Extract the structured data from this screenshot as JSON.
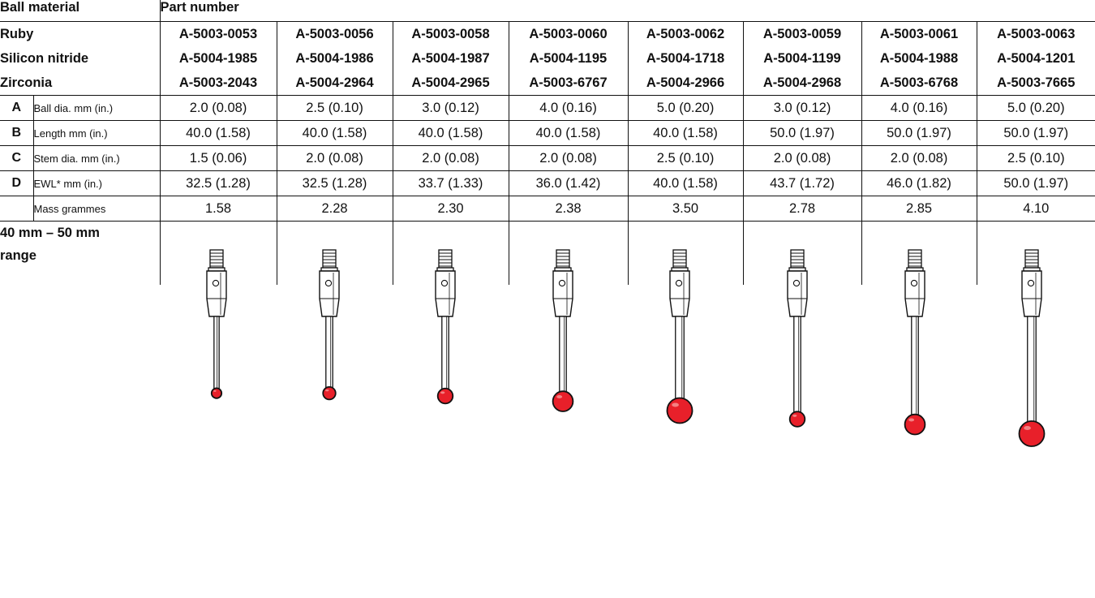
{
  "header": {
    "material_heading": "Ball material",
    "part_heading": "Part number"
  },
  "materials": [
    {
      "name": "Ruby",
      "parts": [
        "A-5003-0053",
        "A-5003-0056",
        "A-5003-0058",
        "A-5003-0060",
        "A-5003-0062",
        "A-5003-0059",
        "A-5003-0061",
        "A-5003-0063"
      ]
    },
    {
      "name": "Silicon nitride",
      "parts": [
        "A-5004-1985",
        "A-5004-1986",
        "A-5004-1987",
        "A-5004-1195",
        "A-5004-1718",
        "A-5004-1199",
        "A-5004-1988",
        "A-5004-1201"
      ]
    },
    {
      "name": "Zirconia",
      "parts": [
        "A-5003-2043",
        "A-5004-2964",
        "A-5004-2965",
        "A-5003-6767",
        "A-5004-2966",
        "A-5004-2968",
        "A-5003-6768",
        "A-5003-7665"
      ]
    }
  ],
  "specs": [
    {
      "letter": "A",
      "label": "Ball dia. mm (in.)",
      "values": [
        "2.0 (0.08)",
        "2.5 (0.10)",
        "3.0 (0.12)",
        "4.0 (0.16)",
        "5.0 (0.20)",
        "3.0 (0.12)",
        "4.0 (0.16)",
        "5.0 (0.20)"
      ]
    },
    {
      "letter": "B",
      "label": "Length mm (in.)",
      "values": [
        "40.0 (1.58)",
        "40.0 (1.58)",
        "40.0 (1.58)",
        "40.0 (1.58)",
        "40.0 (1.58)",
        "50.0 (1.97)",
        "50.0 (1.97)",
        "50.0 (1.97)"
      ]
    },
    {
      "letter": "C",
      "label": "Stem dia. mm (in.)",
      "values": [
        "1.5 (0.06)",
        "2.0 (0.08)",
        "2.0 (0.08)",
        "2.0 (0.08)",
        "2.5 (0.10)",
        "2.0 (0.08)",
        "2.0 (0.08)",
        "2.5 (0.10)"
      ]
    },
    {
      "letter": "D",
      "label": "EWL* mm (in.)",
      "values": [
        "32.5 (1.28)",
        "32.5 (1.28)",
        "33.7 (1.33)",
        "36.0 (1.42)",
        "40.0 (1.58)",
        "43.7 (1.72)",
        "46.0 (1.82)",
        "50.0 (1.97)"
      ]
    },
    {
      "letter": "",
      "label": "Mass grammes",
      "values": [
        "1.58",
        "2.28",
        "2.30",
        "2.38",
        "3.50",
        "2.78",
        "2.85",
        "4.10"
      ]
    }
  ],
  "range_label_line1": "40 mm – 50 mm",
  "range_label_line2": "range",
  "colors": {
    "ball": "#e8202a",
    "ball_highlight": "#f59a9a",
    "ink": "#111111"
  },
  "stylus_icon": "stylus-probe-illustration"
}
